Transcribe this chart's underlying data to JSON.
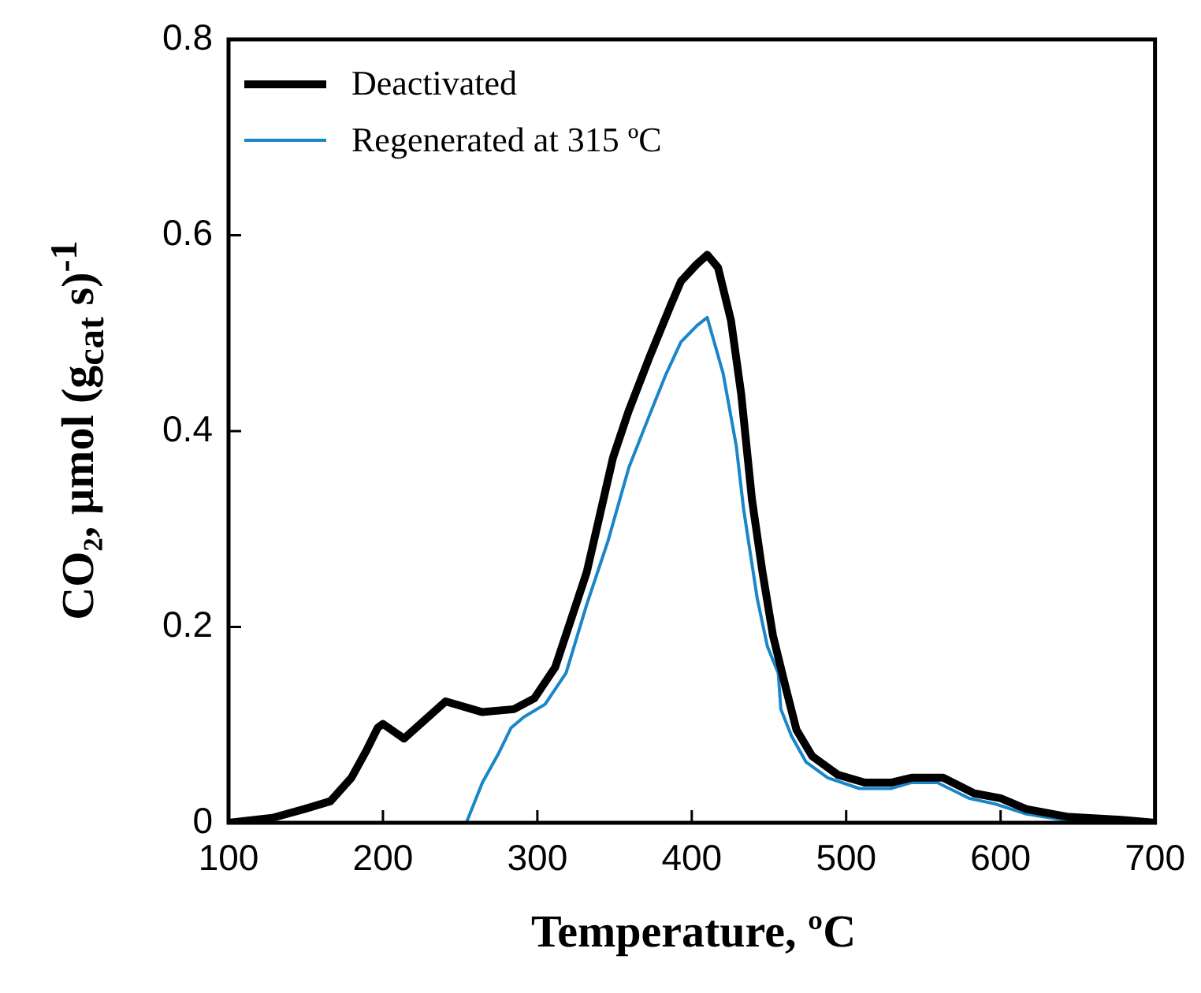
{
  "chart_data": {
    "type": "line",
    "xlabel": "Temperature, ºC",
    "ylabel": "CO₂, µmol (g$_{cat}$ s)$^{-1}$",
    "xlim": [
      100,
      700
    ],
    "xticks": [
      100,
      200,
      300,
      400,
      500,
      600,
      700
    ],
    "ylim": [
      0,
      0.8
    ],
    "yticks": [
      0,
      0.2,
      0.4,
      0.6,
      0.8
    ],
    "grid": false,
    "legend": "top left",
    "marker": "none",
    "line_style": "solid",
    "series": [
      {
        "name": "Deactivated",
        "color": "#000000",
        "x": [
          100,
          128.5,
          149,
          166,
          179.6,
          189.7,
          196.6,
          200,
          213.6,
          240.6,
          264.4,
          284.8,
          298,
          311.6,
          332,
          349,
          359,
          372.5,
          386.5,
          393,
          403,
          410,
          417,
          425.4,
          432,
          439,
          445.8,
          452.6,
          461,
          467.8,
          478,
          494.6,
          512,
          528.9,
          542.4,
          562.7,
          583,
          600,
          616.6,
          644,
          678,
          700
        ],
        "values": [
          0,
          0.005,
          0.014,
          0.022,
          0.046,
          0.075,
          0.097,
          0.101,
          0.086,
          0.124,
          0.113,
          0.116,
          0.127,
          0.159,
          0.256,
          0.373,
          0.42,
          0.475,
          0.529,
          0.553,
          0.57,
          0.58,
          0.567,
          0.513,
          0.438,
          0.33,
          0.256,
          0.191,
          0.137,
          0.095,
          0.068,
          0.049,
          0.041,
          0.041,
          0.046,
          0.046,
          0.03,
          0.025,
          0.014,
          0.006,
          0.003,
          0
        ]
      },
      {
        "name": "Regenerated at 315 ºC",
        "color": "#1a86c8",
        "x": [
          100,
          254,
          264.4,
          274.6,
          283,
          291.3,
          305,
          318.6,
          332,
          345.8,
          359.3,
          372.8,
          383,
          393,
          403.5,
          410,
          420.3,
          428.8,
          433.6,
          442.4,
          449,
          456,
          457.7,
          464.5,
          474,
          488,
          508.5,
          528.9,
          542,
          559,
          579.7,
          597,
          616.6,
          640,
          664,
          700
        ],
        "values": [
          0,
          0,
          0.041,
          0.07,
          0.097,
          0.108,
          0.121,
          0.153,
          0.223,
          0.288,
          0.363,
          0.417,
          0.457,
          0.491,
          0.508,
          0.516,
          0.459,
          0.385,
          0.32,
          0.229,
          0.18,
          0.153,
          0.116,
          0.089,
          0.062,
          0.046,
          0.035,
          0.035,
          0.041,
          0.041,
          0.025,
          0.019,
          0.009,
          0.003,
          0,
          0
        ]
      }
    ]
  }
}
